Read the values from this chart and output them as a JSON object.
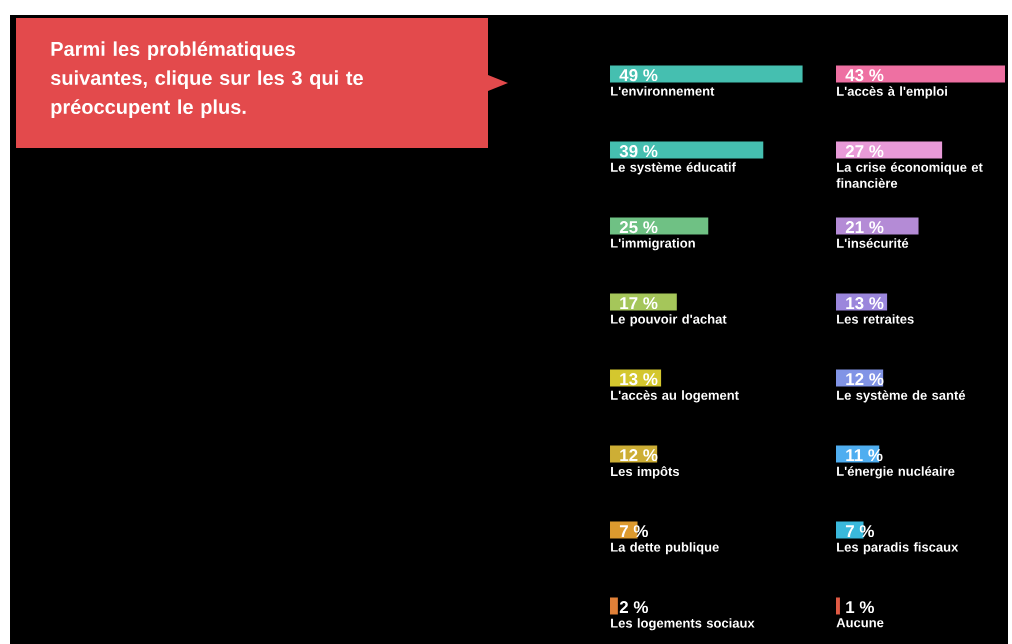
{
  "chart_data": [
    {
      "type": "other",
      "title": "Parmi les problématiques suivantes, clique sur les 3 qui te préoccupent le plus."
    },
    {
      "type": "bar",
      "orientation": "horizontal",
      "categories": [
        "L'environnement",
        "Le système éducatif",
        "L'immigration",
        "Le pouvoir d'achat",
        "L'accès au logement",
        "Les impôts",
        "La dette publique",
        "Les logements sociaux"
      ],
      "values": [
        49,
        39,
        25,
        17,
        13,
        12,
        7,
        2
      ],
      "value_labels": [
        "49 %",
        "39 %",
        "25 %",
        "17 %",
        "13 %",
        "12 %",
        "7 %",
        "2 %"
      ],
      "colors": [
        "#45bfb0",
        "#45bfb0",
        "#6fc184",
        "#a5c65a",
        "#d4c72e",
        "#cdae35",
        "#dd9a2e",
        "#e08038"
      ]
    },
    {
      "type": "bar",
      "orientation": "horizontal",
      "categories": [
        "L'accès à l'emploi",
        "La crise économique et financière",
        "L'insécurité",
        "Les retraites",
        "Le système de santé",
        "L'énergie nucléaire",
        "Les paradis fiscaux",
        "Aucune"
      ],
      "values": [
        43,
        27,
        21,
        13,
        12,
        11,
        7,
        1
      ],
      "value_labels": [
        "43 %",
        "27 %",
        "21 %",
        "13 %",
        "12 %",
        "11 %",
        "7 %",
        "1 %"
      ],
      "colors": [
        "#ee70a2",
        "#e89ad8",
        "#b48bd6",
        "#9b86dc",
        "#8194e6",
        "#4faef0",
        "#3ab9dc",
        "#e05a44"
      ]
    }
  ]
}
